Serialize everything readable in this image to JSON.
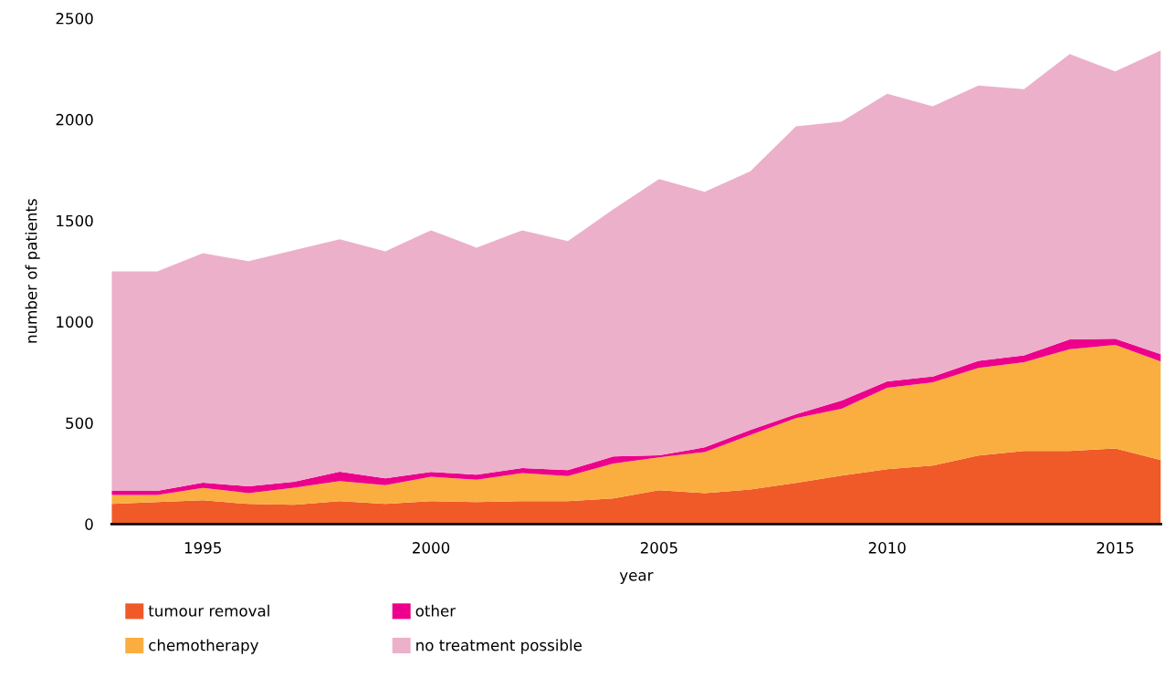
{
  "chart_data": {
    "type": "area",
    "stacked": true,
    "xlabel": "year",
    "ylabel": "number of patients",
    "x": [
      1993,
      1994,
      1995,
      1996,
      1997,
      1998,
      1999,
      2000,
      2001,
      2002,
      2003,
      2004,
      2005,
      2006,
      2007,
      2008,
      2009,
      2010,
      2011,
      2012,
      2013,
      2014,
      2015,
      2016
    ],
    "series": [
      {
        "name": "tumour removal",
        "color": "#f05a28",
        "values": [
          99,
          108,
          117,
          99,
          95,
          113,
          99,
          113,
          108,
          113,
          113,
          126,
          167,
          153,
          171,
          203,
          239,
          271,
          289,
          338,
          361,
          361,
          374,
          316
        ]
      },
      {
        "name": "chemotherapy",
        "color": "#faae40",
        "values": [
          45,
          36,
          61,
          54,
          85,
          99,
          93,
          121,
          111,
          139,
          124,
          173,
          163,
          203,
          269,
          320,
          331,
          403,
          411,
          434,
          439,
          503,
          511,
          487
        ]
      },
      {
        "name": "other",
        "color": "#ec008c",
        "values": [
          20,
          20,
          26,
          33,
          29,
          47,
          34,
          23,
          25,
          24,
          29,
          35,
          10,
          23,
          25,
          20,
          40,
          31,
          29,
          35,
          34,
          49,
          31,
          36
        ]
      },
      {
        "name": "no treatment possible",
        "color": "#ecb0ca",
        "values": [
          1085,
          1085,
          1135,
          1113,
          1144,
          1148,
          1122,
          1195,
          1122,
          1176,
          1132,
          1222,
          1365,
          1263,
          1279,
          1423,
          1379,
          1422,
          1336,
          1360,
          1316,
          1410,
          1321,
          1502
        ]
      }
    ],
    "xlim": [
      1993,
      2016
    ],
    "xticks": [
      1995,
      2000,
      2005,
      2010,
      2015
    ],
    "ylim": [
      0,
      2500
    ],
    "yticks": [
      0,
      500,
      1000,
      1500,
      2000,
      2500
    ],
    "grid": false,
    "legend": "bottom"
  }
}
